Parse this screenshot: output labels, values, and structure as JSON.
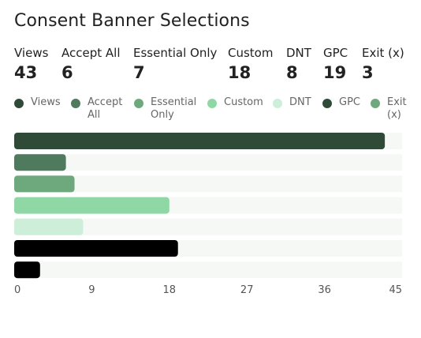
{
  "title": "Consent Banner Selections",
  "stats": [
    {
      "label": "Views",
      "value": "43"
    },
    {
      "label": "Accept All",
      "value": "6"
    },
    {
      "label": "Essential Only",
      "value": "7"
    },
    {
      "label": "Custom",
      "value": "18"
    },
    {
      "label": "DNT",
      "value": "8"
    },
    {
      "label": "GPC",
      "value": "19"
    },
    {
      "label": "Exit (x)",
      "value": "3"
    }
  ],
  "legend": [
    {
      "line1": "Views",
      "line2": "",
      "color": "#2f4b38"
    },
    {
      "line1": "Accept",
      "line2": "All",
      "color": "#4f7a5d"
    },
    {
      "line1": "Essential",
      "line2": "Only",
      "color": "#6ea97d"
    },
    {
      "line1": "Custom",
      "line2": "",
      "color": "#8fd8a5"
    },
    {
      "line1": "DNT",
      "line2": "",
      "color": "#cdeed8"
    },
    {
      "line1": "GPC",
      "line2": "",
      "color": "#2f4b38"
    },
    {
      "line1": "Exit",
      "line2": "(x)",
      "color": "#6ea97d"
    }
  ],
  "chart_data": {
    "type": "bar",
    "orientation": "horizontal",
    "categories": [
      "Views",
      "Accept All",
      "Essential Only",
      "Custom",
      "DNT",
      "GPC",
      "Exit (x)"
    ],
    "values": [
      43,
      6,
      7,
      18,
      8,
      19,
      3
    ],
    "colors": [
      "#2f4b38",
      "#4f7a5d",
      "#6ea97d",
      "#8fd8a5",
      "#cdeed8",
      "#000000",
      "#000000"
    ],
    "track_color": "#f6f8f6",
    "xlim": [
      0,
      45
    ],
    "xticks": [
      0,
      9,
      18,
      27,
      36,
      45
    ],
    "grid": false,
    "legend_position": "top"
  }
}
